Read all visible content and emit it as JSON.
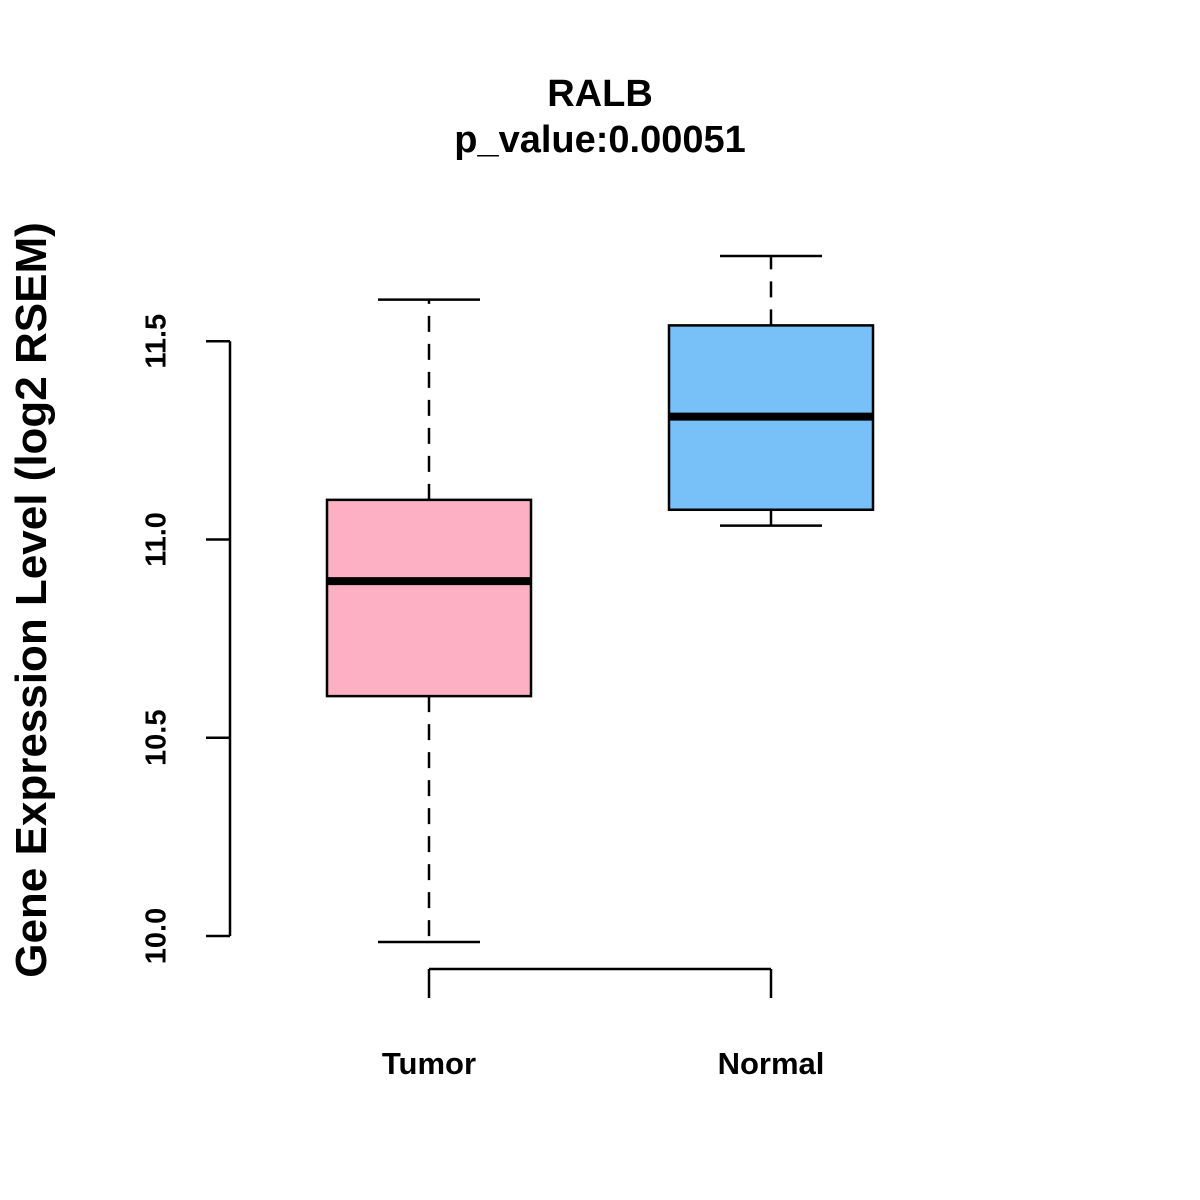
{
  "chart_data": {
    "type": "box",
    "title": "RALB",
    "subtitle": "p_value:0.00051",
    "xlabel": "",
    "ylabel": "Gene Expression Level (log2 RSEM)",
    "ylim": [
      9.85,
      11.95
    ],
    "yticks": [
      10.0,
      10.5,
      11.0,
      11.5
    ],
    "ytick_labels": [
      "10.0",
      "10.5",
      "11.0",
      "11.5"
    ],
    "categories": [
      "Tumor",
      "Normal"
    ],
    "boxes": [
      {
        "name": "Tumor",
        "whisker_low": 9.985,
        "q1": 10.605,
        "median": 10.895,
        "q3": 11.1,
        "whisker_high": 11.605,
        "color": "#FDB0C3"
      },
      {
        "name": "Normal",
        "whisker_low": 11.035,
        "q1": 11.075,
        "median": 11.31,
        "q3": 11.54,
        "whisker_high": 11.715,
        "color": "#77C1F8"
      }
    ],
    "grid": false,
    "legend": "none"
  }
}
